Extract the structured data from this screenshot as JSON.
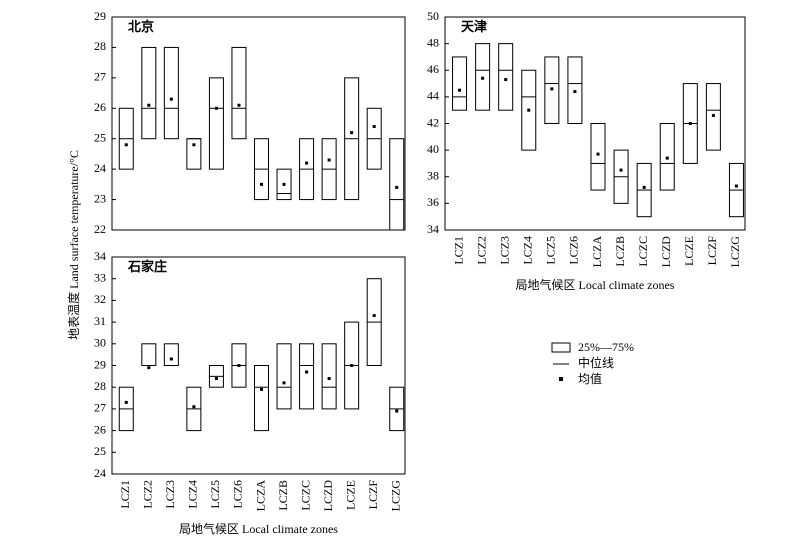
{
  "y_label": "地表温度 Land surface temperature/°C",
  "legend": [
    "25%—75%",
    "中位线",
    "均值"
  ],
  "chart_data": [
    {
      "type": "box",
      "title": "北京",
      "q1": [
        24,
        25,
        25,
        24,
        24,
        25,
        23,
        23,
        23,
        23,
        23,
        24,
        22
      ],
      "median": [
        25,
        26,
        26,
        25,
        26,
        26,
        24,
        23.2,
        24,
        24,
        25,
        25,
        23
      ],
      "q3": [
        26,
        28,
        28,
        25,
        27,
        28,
        25,
        24,
        25,
        25,
        27,
        26,
        25
      ],
      "mean": [
        24.8,
        26.1,
        26.3,
        24.8,
        26,
        26.1,
        23.5,
        23.5,
        24.2,
        24.3,
        25.2,
        25.4,
        23.4
      ],
      "ylim": [
        22,
        29
      ],
      "yticks": [
        22,
        23,
        24,
        25,
        26,
        27,
        28,
        29
      ]
    },
    {
      "type": "box",
      "title": "天津",
      "xlabel": "局地气候区 Local climate zones",
      "categories": [
        "LCZ1",
        "LCZ2",
        "LCZ3",
        "LCZ4",
        "LCZ5",
        "LCZ6",
        "LCZA",
        "LCZB",
        "LCZC",
        "LCZD",
        "LCZE",
        "LCZF",
        "LCZG"
      ],
      "q1": [
        43,
        43,
        43,
        40,
        42,
        42,
        37,
        36,
        35,
        37,
        39,
        40,
        35
      ],
      "median": [
        44,
        46,
        46,
        44,
        45,
        45,
        39,
        38,
        37,
        39,
        42,
        43,
        37
      ],
      "q3": [
        47,
        48,
        48,
        46,
        47,
        47,
        42,
        40,
        39,
        42,
        45,
        45,
        39
      ],
      "mean": [
        44.5,
        45.4,
        45.3,
        43,
        44.6,
        44.4,
        39.7,
        38.5,
        37.2,
        39.4,
        42,
        42.6,
        37.3
      ],
      "ylim": [
        34,
        50
      ],
      "yticks": [
        34,
        36,
        38,
        40,
        42,
        44,
        46,
        48,
        50
      ]
    },
    {
      "type": "box",
      "title": "石家庄",
      "xlabel": "局地气候区 Local climate zones",
      "categories": [
        "LCZ1",
        "LCZ2",
        "LCZ3",
        "LCZ4",
        "LCZ5",
        "LCZ6",
        "LCZA",
        "LCZB",
        "LCZC",
        "LCZD",
        "LCZE",
        "LCZF",
        "LCZG"
      ],
      "q1": [
        26,
        29,
        29,
        26,
        28,
        28,
        26,
        27,
        27,
        27,
        27,
        29,
        26
      ],
      "median": [
        27,
        29,
        29,
        27,
        28.5,
        29,
        28,
        28,
        29,
        28,
        29,
        31,
        27
      ],
      "q3": [
        28,
        30,
        30,
        28,
        29,
        30,
        29,
        30,
        30,
        30,
        31,
        33,
        28
      ],
      "mean": [
        27.3,
        28.9,
        29.3,
        27.1,
        28.4,
        29,
        27.9,
        28.2,
        28.7,
        28.4,
        29,
        31.3,
        26.9
      ],
      "ylim": [
        24,
        34
      ],
      "yticks": [
        24,
        25,
        26,
        27,
        28,
        29,
        30,
        31,
        32,
        33,
        34
      ]
    }
  ]
}
